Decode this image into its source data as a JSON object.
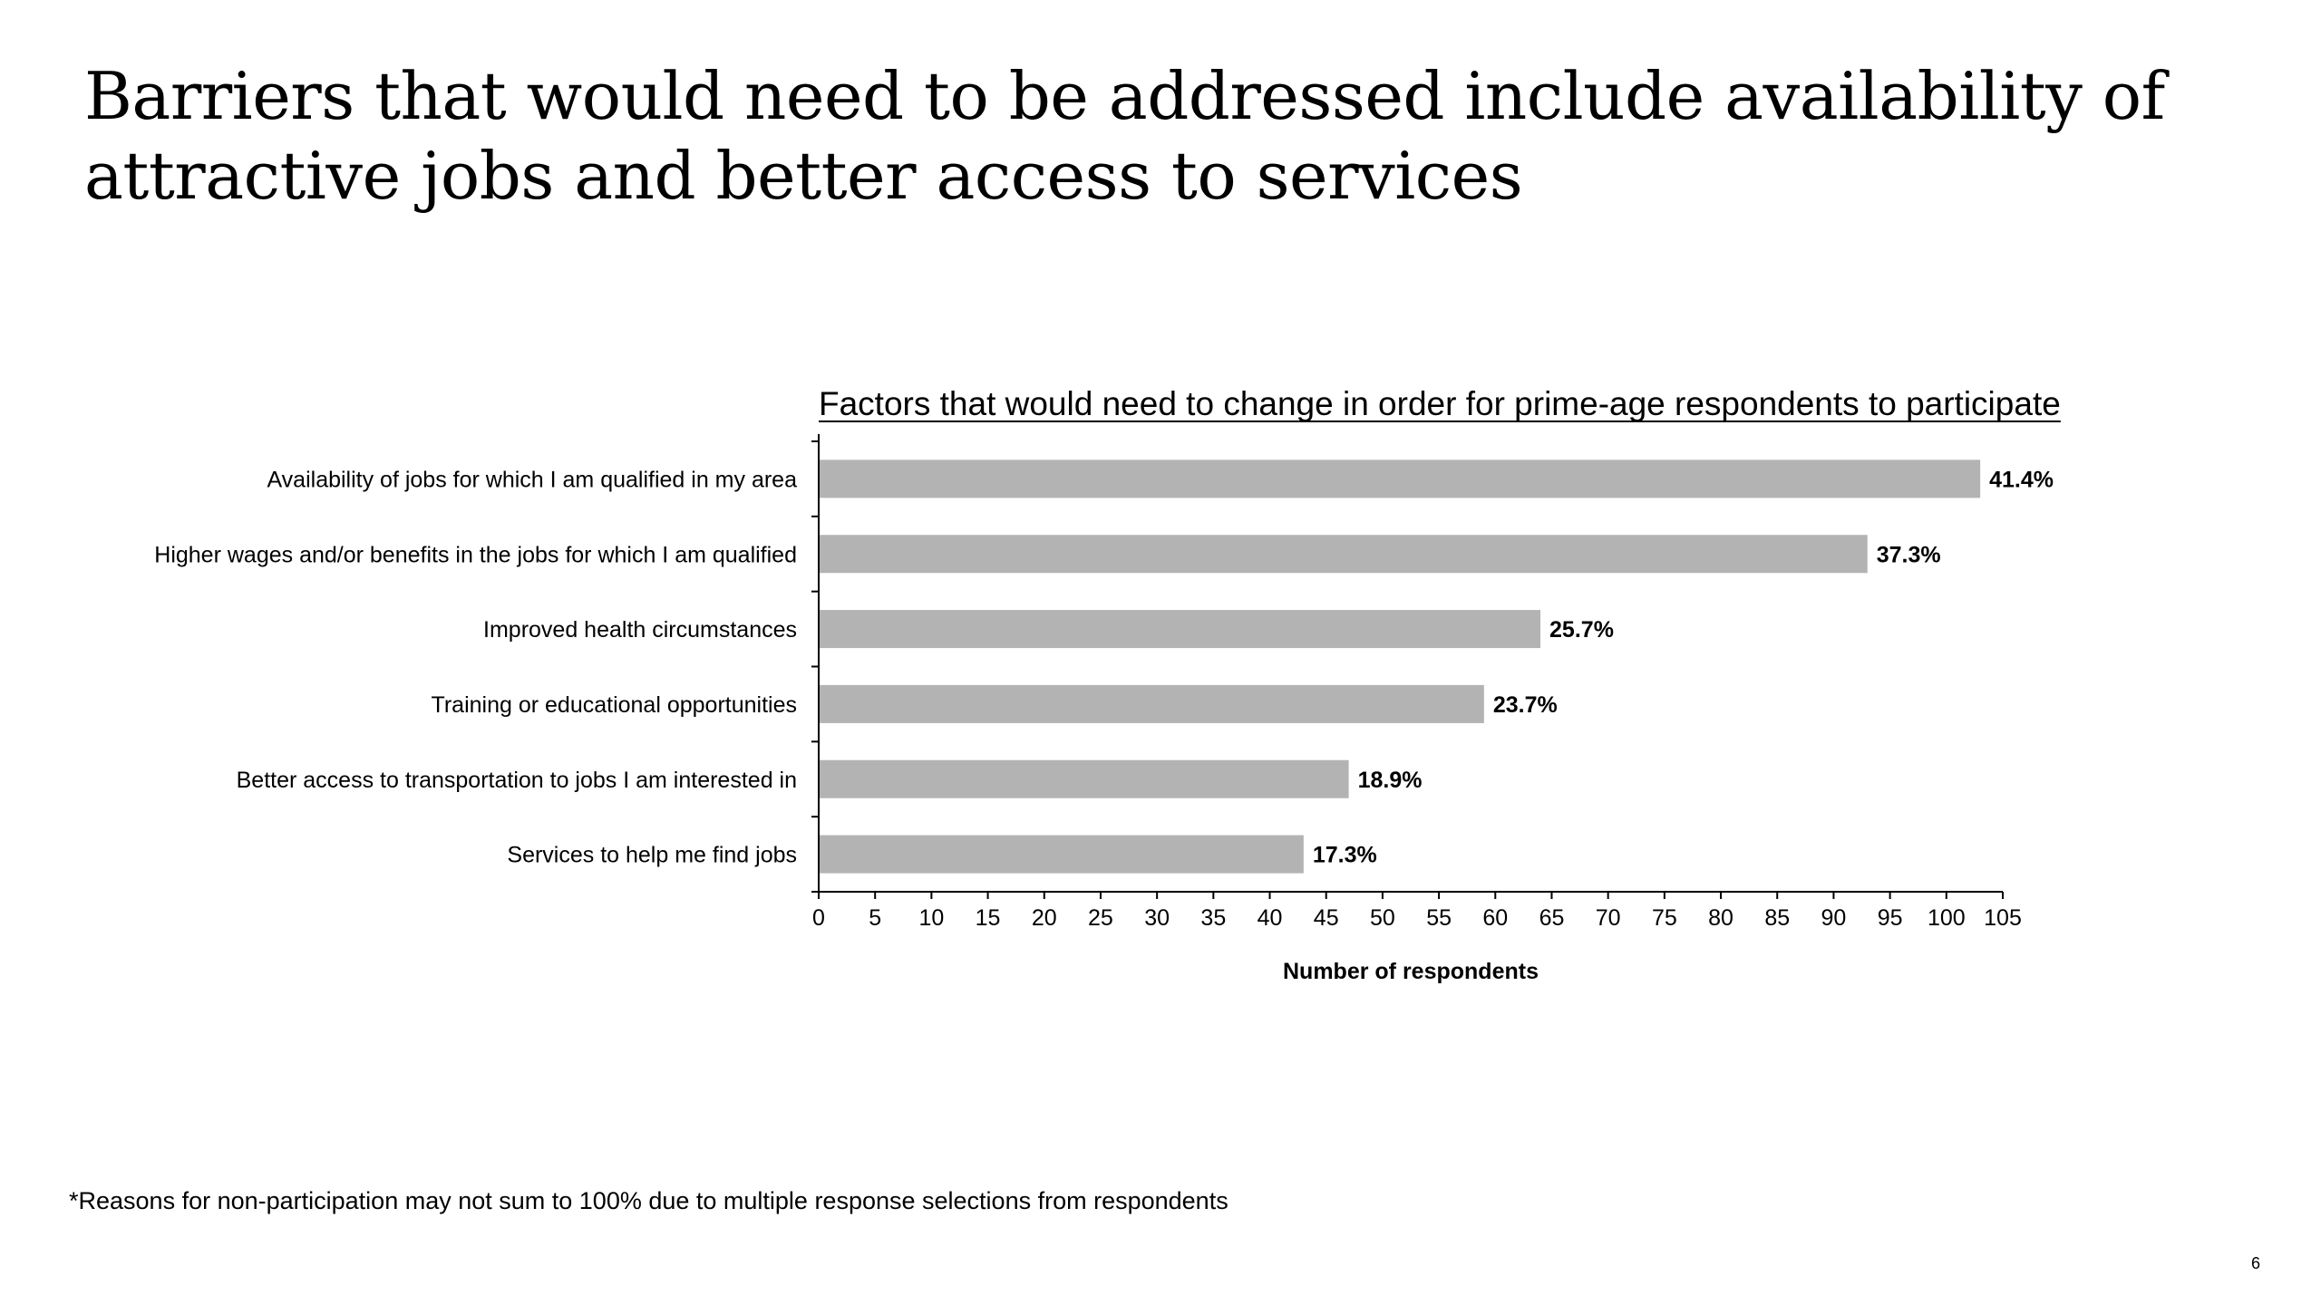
{
  "slide": {
    "title": "Barriers that would need to be addressed include availability of attractive jobs and better access to services",
    "footnote": "*Reasons for non-participation may not sum to 100% due to multiple response selections from respondents",
    "page_number": "6"
  },
  "chart_data": {
    "type": "bar",
    "orientation": "horizontal",
    "title": "Factors that would need to change in order for prime-age respondents to participate",
    "xlabel": "Number of respondents",
    "ylabel": "",
    "categories": [
      "Availability of jobs for which I am qualified in my area",
      "Higher wages and/or benefits in the jobs for which I am qualified",
      "Improved health circumstances",
      "Training or educational opportunities",
      "Better access to transportation to jobs I am interested in",
      "Services to help me find jobs"
    ],
    "values": [
      103,
      93,
      64,
      59,
      47,
      43
    ],
    "data_labels": [
      "41.4%",
      "37.3%",
      "25.7%",
      "23.7%",
      "18.9%",
      "17.3%"
    ],
    "xlim": [
      0,
      105
    ],
    "xticks": [
      "0",
      "5",
      "10",
      "15",
      "20",
      "25",
      "30",
      "35",
      "40",
      "45",
      "50",
      "55",
      "60",
      "65",
      "70",
      "75",
      "80",
      "85",
      "90",
      "95",
      "100",
      "105"
    ],
    "bar_color": "#b3b3b3",
    "axis_color": "#000000",
    "grid": false,
    "legend": "none"
  }
}
